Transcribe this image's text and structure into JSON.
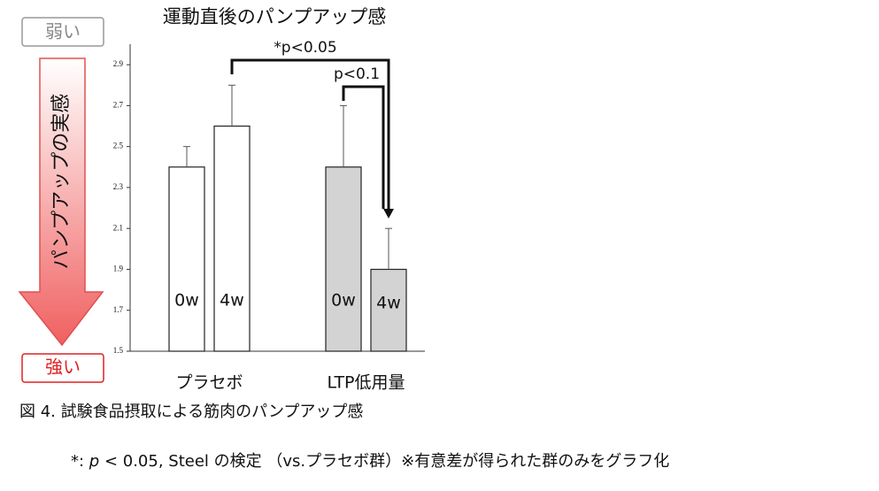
{
  "chart_data": {
    "type": "bar",
    "title": "運動直後のパンプアップ感",
    "categories": [
      "プラセボ",
      "LTP低用量"
    ],
    "category_colors": [
      "#ffffff",
      "#d3d3d3"
    ],
    "series": [
      {
        "name": "0w",
        "values": [
          2.4,
          2.4
        ],
        "errors": [
          0.1,
          0.3
        ]
      },
      {
        "name": "4w",
        "values": [
          2.6,
          1.9
        ],
        "errors": [
          0.2,
          0.2
        ]
      }
    ],
    "ylim": [
      1.5,
      3.0
    ],
    "yticks": [
      1.5,
      1.7,
      1.9,
      2.1,
      2.3,
      2.5,
      2.7,
      2.9
    ],
    "annotations": [
      "*p<0.05",
      "p<0.1"
    ],
    "scale_top": "弱い",
    "scale_bottom": "強い",
    "scale_label": "パンプアップの実感"
  },
  "caption": "図 4.  試験食品摂取による筋肉のパンプアップ感",
  "footnote": [
    "*: ",
    "p",
    " < 0.05, Steel の検定  （vs.プラセボ群）※有意差が得られた群のみをグラフ化"
  ]
}
